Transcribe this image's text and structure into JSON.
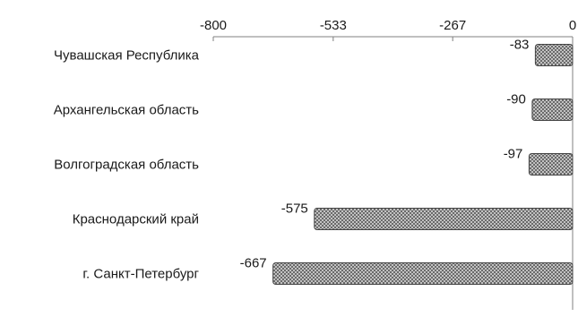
{
  "chart_data": {
    "type": "bar",
    "orientation": "horizontal",
    "title": "",
    "xlabel": "",
    "ylabel": "",
    "categories": [
      "Чувашская Республика",
      "Архангельская область",
      "Волгоградская область",
      "Краснодарский край",
      "г. Санкт-Петербург"
    ],
    "values": [
      -83,
      -90,
      -97,
      -575,
      -667
    ],
    "data_labels": [
      "-83",
      "-90",
      "-97",
      "-575",
      "-667"
    ],
    "xlim": [
      -800,
      0
    ],
    "x_ticks": [
      -800,
      -533,
      -267,
      0
    ],
    "x_tick_labels": [
      "-800",
      "-533",
      "-267",
      "0"
    ],
    "x_axis_position": "top",
    "grid": false,
    "legend": "none",
    "bar_pattern": "crosshatch",
    "colors": {
      "bar_fill": "#d9d9d9",
      "bar_hatch": "#555555",
      "bar_stroke": "#444444",
      "axis": "#808080",
      "text": "#1a1a1a"
    }
  }
}
